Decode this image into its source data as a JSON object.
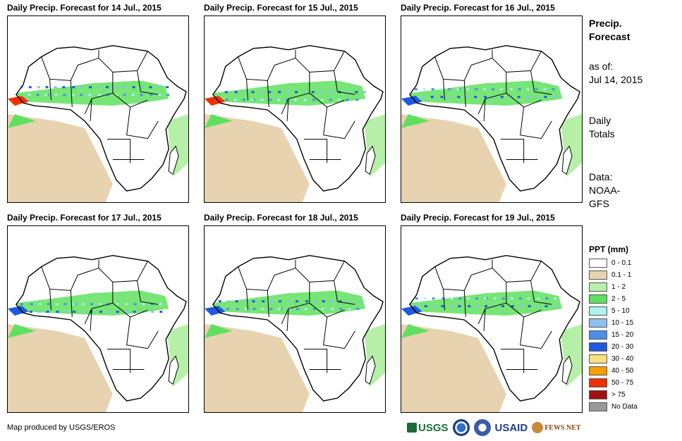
{
  "panels": [
    {
      "title": "Daily Precip. Forecast for 14 Jul., 2015"
    },
    {
      "title": "Daily Precip. Forecast for 15 Jul., 2015"
    },
    {
      "title": "Daily Precip. Forecast for 16 Jul., 2015"
    },
    {
      "title": "Daily Precip. Forecast for 17 Jul., 2015"
    },
    {
      "title": "Daily Precip. Forecast for 18 Jul., 2015"
    },
    {
      "title": "Daily Precip. Forecast for 19 Jul., 2015"
    }
  ],
  "sidebar": {
    "title_line1": "Precip.",
    "title_line2": "Forecast",
    "asof_label": "as of:",
    "asof_date": "Jul 14, 2015",
    "totals_line1": "Daily",
    "totals_line2": "Totals",
    "data_line1": "Data:",
    "data_line2": "NOAA-",
    "data_line3": "GFS"
  },
  "legend": {
    "title": "PPT (mm)",
    "items": [
      {
        "label": "0 - 0.1",
        "color": "#ffffff"
      },
      {
        "label": "0.1 - 1",
        "color": "#e8d3b0"
      },
      {
        "label": "1 - 2",
        "color": "#b6f0a8"
      },
      {
        "label": "2 - 5",
        "color": "#5fe05f"
      },
      {
        "label": "5 - 10",
        "color": "#aef0f0"
      },
      {
        "label": "10 - 15",
        "color": "#8cc0f0"
      },
      {
        "label": "15 - 20",
        "color": "#4a90e8"
      },
      {
        "label": "20 - 30",
        "color": "#1e5ae0"
      },
      {
        "label": "30 - 40",
        "color": "#f8e080"
      },
      {
        "label": "40 - 50",
        "color": "#f8a000"
      },
      {
        "label": "50 - 75",
        "color": "#f03000"
      },
      {
        "label": "> 75",
        "color": "#a01010"
      },
      {
        "label": "No Data",
        "color": "#999999"
      }
    ]
  },
  "footer": {
    "credit": "Map produced by USGS/EROS",
    "logo_usgs": "USGS",
    "logo_usaid": "USAID",
    "logo_fews": "FEWS NET"
  }
}
